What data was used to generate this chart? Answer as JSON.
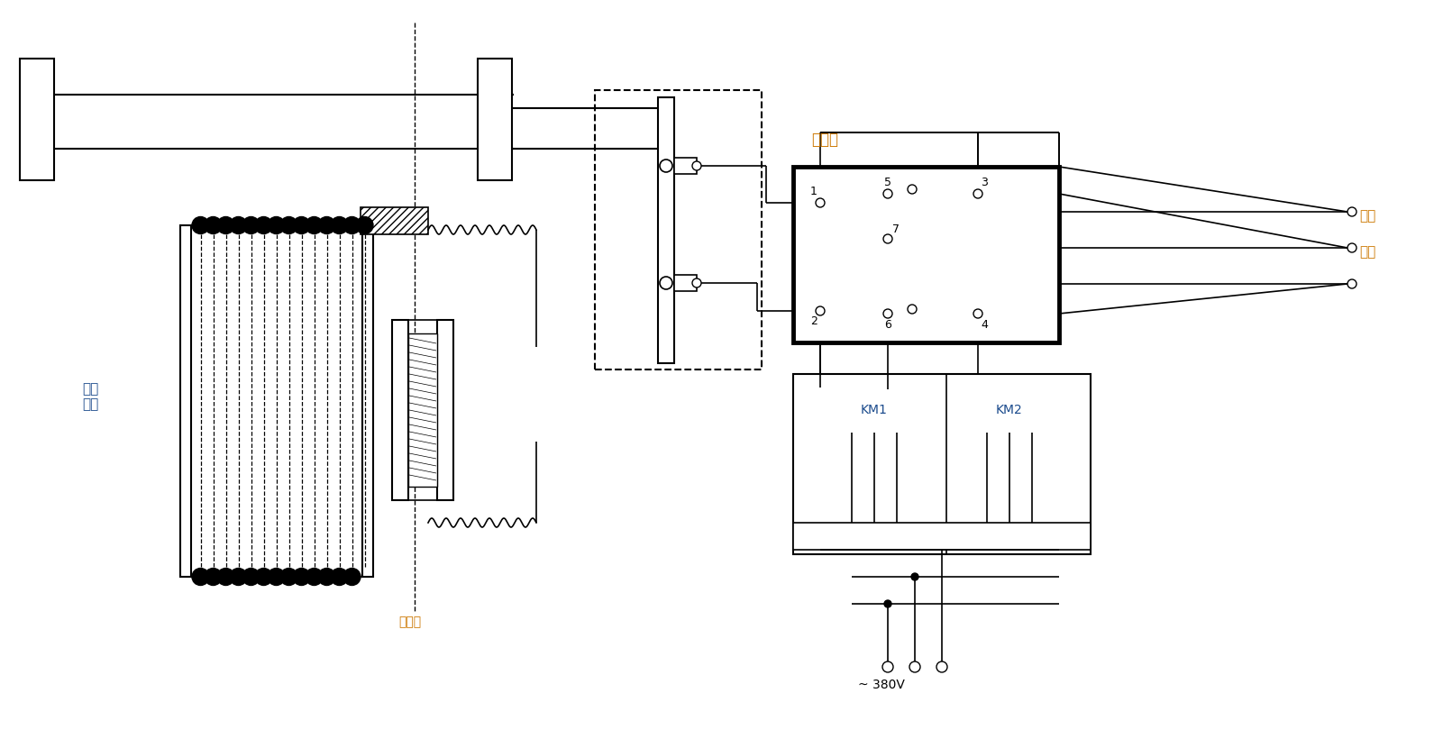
{
  "bg_color": "#ffffff",
  "lc": "#000000",
  "label_gangjuan": "钓绳\n卷筒",
  "label_paisheng": "排绳器",
  "label_duanhuoqi": "断火器",
  "label_juyang": "卷扬",
  "label_dianji": "电机",
  "label_KM1": "KM1",
  "label_KM2": "KM2",
  "label_380V": "~ 380V",
  "color_blue": "#1a4a8c",
  "color_orange": "#cc7700"
}
